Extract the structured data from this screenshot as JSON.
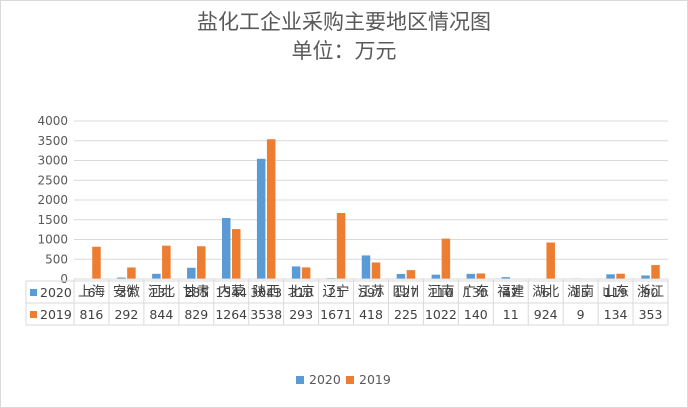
{
  "chart_data": {
    "type": "bar",
    "title": "盐化工企业采购主要地区情况图",
    "subtitle": "单位：万元",
    "categories": [
      "上海",
      "安徽",
      "河北",
      "甘肃",
      "内蒙",
      "陕西",
      "北京",
      "辽宁",
      "江苏",
      "四川",
      "河南",
      "广东",
      "福建",
      "湖北",
      "湖南",
      "山东",
      "浙江"
    ],
    "series": [
      {
        "name": "2020",
        "color": "#5b9bd5",
        "values": [
          6,
          37,
          131,
          285,
          1544,
          3043,
          318,
          21,
          597,
          127,
          110,
          130,
          47,
          6,
          15,
          119,
          90
        ]
      },
      {
        "name": "2019",
        "color": "#ed7d31",
        "values": [
          816,
          292,
          844,
          829,
          1264,
          3538,
          293,
          1671,
          418,
          225,
          1022,
          140,
          11,
          924,
          9,
          134,
          353
        ]
      }
    ],
    "ylim": [
      0,
      4000
    ],
    "yticks": [
      0,
      500,
      1000,
      1500,
      2000,
      2500,
      3000,
      3500,
      4000
    ],
    "grid": true,
    "legend": "bottom",
    "data_table": true
  }
}
